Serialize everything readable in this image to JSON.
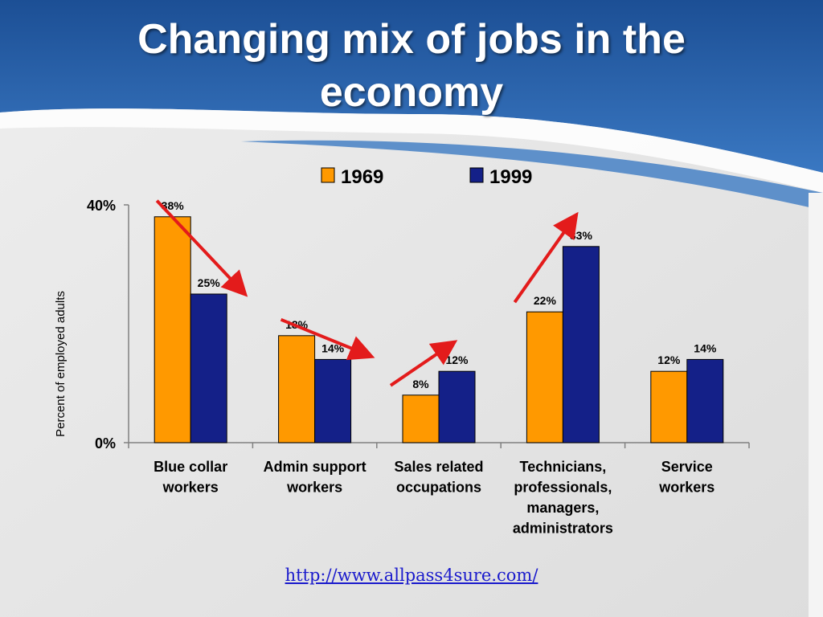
{
  "slide": {
    "title_lines": [
      "Changing mix of jobs in the",
      "economy"
    ],
    "link_text": "http://www.allpass4sure.com/"
  },
  "colors": {
    "header": "#2d66ad",
    "series_1969": "#ff9900",
    "series_1999": "#142088",
    "arrow": "#e31b1b"
  },
  "chart_data": {
    "type": "bar",
    "title": "",
    "ylabel": "Percent of employed adults",
    "xlabel": "",
    "ylim": [
      0,
      40
    ],
    "y_tick_labels": [
      "0%",
      "40%"
    ],
    "y_ticks": [
      0,
      40
    ],
    "legend_position": "top",
    "categories": [
      [
        "Blue collar",
        "workers"
      ],
      [
        "Admin support",
        "workers"
      ],
      [
        "Sales related",
        "occupations"
      ],
      [
        "Technicians,",
        "professionals,",
        "managers,",
        "administrators"
      ],
      [
        "Service",
        "workers"
      ]
    ],
    "series": [
      {
        "name": "1969",
        "values": [
          38,
          18,
          8,
          22,
          12
        ],
        "labels": [
          "38%",
          "18%",
          "8%",
          "22%",
          "12%"
        ]
      },
      {
        "name": "1999",
        "values": [
          25,
          14,
          12,
          33,
          14
        ],
        "labels": [
          "25%",
          "14%",
          "12%",
          "33%",
          "14%"
        ]
      }
    ],
    "trend_arrows": [
      "down",
      "down",
      "up",
      "up"
    ]
  }
}
